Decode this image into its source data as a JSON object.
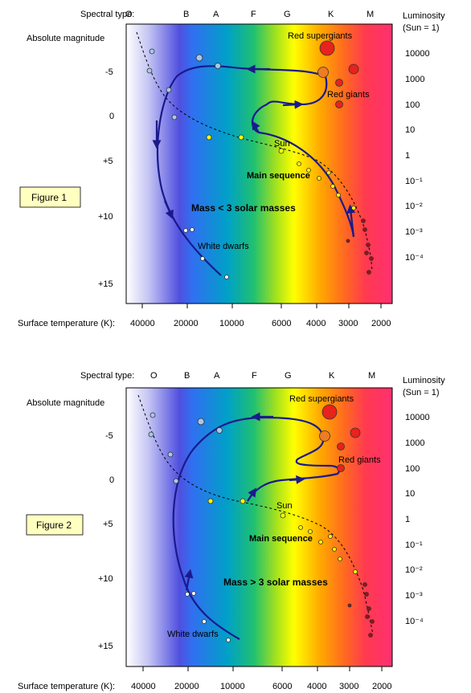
{
  "common": {
    "spectral_label": "Spectral type:",
    "spectral_types": [
      "O",
      "B",
      "A",
      "F",
      "G",
      "K",
      "M"
    ],
    "luminosity_label_1": "Luminosity",
    "luminosity_label_2": "(Sun = 1)",
    "absolute_magnitude_label": "Absolute magnitude",
    "temperature_label": "Surface temperature (K):",
    "magnitude_ticks": [
      "-5",
      "0",
      "+5",
      "+10",
      "+15"
    ],
    "luminosity_ticks": [
      "10000",
      "1000",
      "100",
      "10",
      "1",
      "10⁻¹",
      "10⁻²",
      "10⁻³",
      "10⁻⁴"
    ],
    "temperature_ticks": [
      "40000",
      "20000",
      "10000",
      "6000",
      "4000",
      "3000",
      "2000"
    ],
    "labels": {
      "red_supergiants": "Red supergiants",
      "red_giants": "Red giants",
      "sun": "Sun",
      "main_sequence": "Main sequence",
      "white_dwarfs": "White dwarfs"
    },
    "colors": {
      "track": "#1a1a8c",
      "red_star": "#e8221c",
      "orange_star": "#f07c22",
      "blue_star": "#a8c8e8",
      "yellow_star": "#ffff00",
      "dark_red_star": "#a01010"
    }
  },
  "figure1": {
    "figure_label": "Figure 1",
    "mass_label": "Mass < 3 solar masses"
  },
  "figure2": {
    "figure_label": "Figure 2",
    "mass_label": "Mass > 3 solar masses"
  }
}
